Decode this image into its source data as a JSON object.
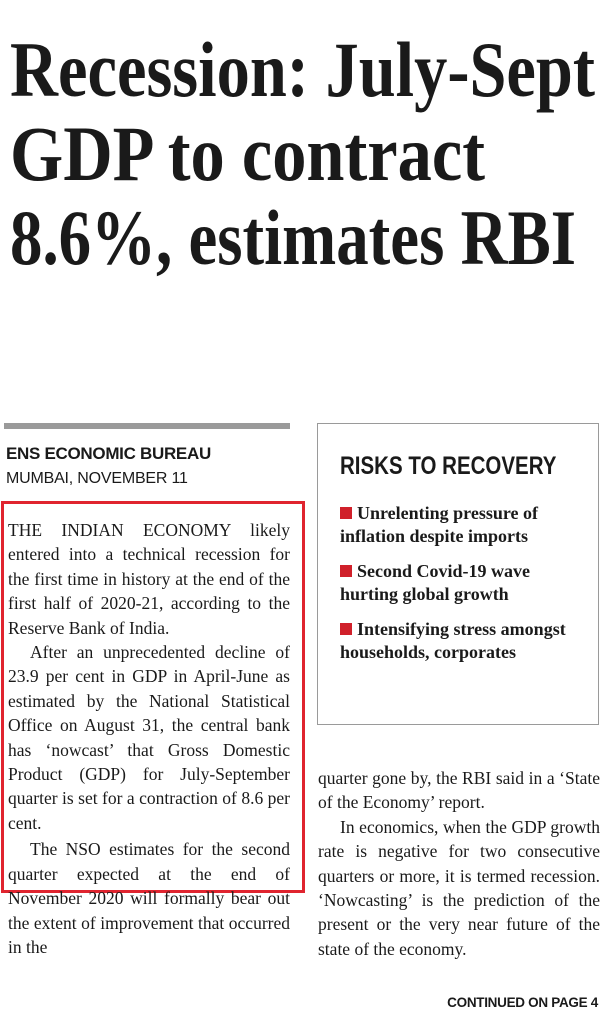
{
  "headline": [
    "Recession: July-Sept",
    "GDP to contract",
    "8.6%, estimates RBI"
  ],
  "byline": "ENS ECONOMIC BUREAU",
  "dateline": "MUMBAI, NOVEMBER 11",
  "left_column": [
    "THE INDIAN ECONOMY likely entered into a technical recession for the first time in history at the end of the first half of 2020-21, according to the Reserve Bank of India.",
    "After an unprecedented decline of 23.9 per cent in GDP in April-June as estimated by the National Statistical Office on August 31, the central bank has ‘nowcast’ that Gross Domestic Product (GDP) for July-September quarter is set for a contraction of 8.6 per cent.",
    "The NSO estimates for the second quarter expected at the end of November 2020 will formally bear out the extent of improvement that occurred in the"
  ],
  "right_column": [
    "quarter gone by, the RBI said in a ‘State of the Economy’ report.",
    "In economics, when the GDP growth rate is negative for two consecutive quarters or more, it is termed recession. ‘Nowcasting’ is the prediction of the present or the very near future of the state of the economy."
  ],
  "sidebar": {
    "title": "RISKS TO RECOVERY",
    "items": [
      "Unrelenting pressure of inflation despite imports",
      "Second Covid-19 wave hurting global growth",
      "Intensifying stress amongst households, corporates"
    ]
  },
  "continued": "CONTINUED ON PAGE 4"
}
